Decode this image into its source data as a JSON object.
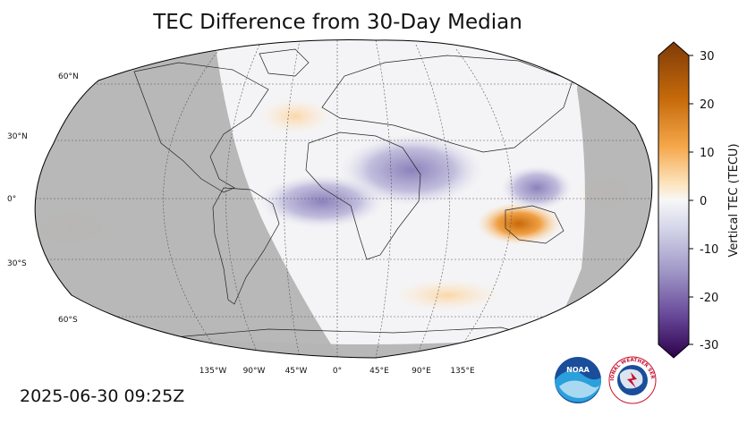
{
  "title": "TEC Difference from 30-Day Median",
  "timestamp": "2025-06-30 09:25Z",
  "lat_labels": [
    "60°N",
    "30°N",
    "0°",
    "30°S",
    "60°S"
  ],
  "lon_labels": [
    "135°W",
    "90°W",
    "45°W",
    "0°",
    "45°E",
    "90°E",
    "135°E"
  ],
  "colorbar": {
    "label": "Vertical TEC (TECU)",
    "ticks": [
      "30",
      "20",
      "10",
      "0",
      "-10",
      "-20",
      "-30"
    ],
    "min": -30,
    "max": 30,
    "colors": {
      "high": "#7f3b08",
      "mid_high": "#e08214",
      "light_high": "#fdd49e",
      "zero": "#f7f7f7",
      "light_low": "#d8daeb",
      "mid_low": "#8073ac",
      "low": "#2d004b"
    }
  },
  "night_shade_color": "#b4b4b4",
  "logos": {
    "noaa_text": "NOAA",
    "nws_text": "NATIONAL WEATHER SERVICE"
  }
}
